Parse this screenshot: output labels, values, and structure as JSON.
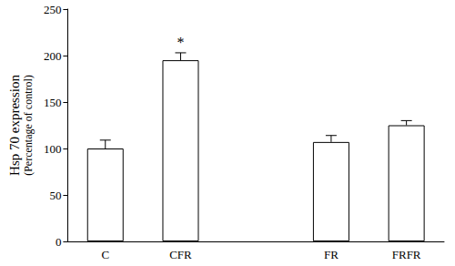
{
  "chart_data": {
    "type": "bar",
    "ylabel": "Hsp 70 expression",
    "ylabel_sub": "(Percentage of control)",
    "categories": [
      "C",
      "CFR",
      null,
      "FR",
      "FRFR"
    ],
    "values": [
      100,
      195,
      null,
      107,
      125
    ],
    "errors": [
      9,
      8,
      null,
      7,
      5
    ],
    "color": "#ffffff",
    "annotations": [
      {
        "category": "CFR",
        "text": "*"
      }
    ],
    "ylim": [
      0,
      250
    ],
    "yticks": [
      0,
      50,
      100,
      150,
      200,
      250
    ],
    "grid": false
  }
}
